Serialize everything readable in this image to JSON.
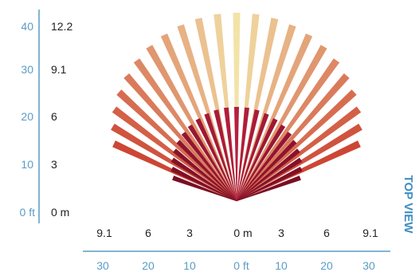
{
  "view_title": "TOP VIEW",
  "left_scale": {
    "feet_labels": [
      "40",
      "30",
      "20",
      "10",
      "0 ft"
    ],
    "meter_labels": [
      "12.2",
      "9.1",
      "6",
      "3",
      "0 m"
    ]
  },
  "bottom_scale": {
    "meter_labels": [
      "9.1",
      "6",
      "3",
      "0 m",
      "3",
      "6",
      "9.1"
    ],
    "feet_labels": [
      "30",
      "20",
      "10",
      "0 ft",
      "10",
      "20",
      "30"
    ]
  },
  "colors": {
    "scale": "#5b9cc4",
    "title": "#3f8ec2",
    "outer_fan_near": "#f3e3a8",
    "outer_fan_far": "#cd4634",
    "inner_fan_near": "#b71f3e",
    "inner_fan_far": "#7a0e24"
  },
  "coverage": {
    "outer_reach_ft": 40,
    "inner_reach_ft": 20,
    "outer_spread_deg": 130,
    "inner_spread_deg": 140,
    "outer_beam_count": 23,
    "inner_beam_count": 23
  }
}
